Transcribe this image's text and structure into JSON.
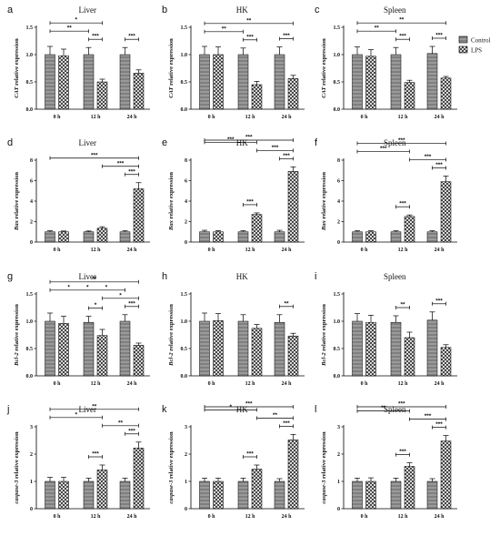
{
  "legend": [
    {
      "label": "Control",
      "pattern": "control"
    },
    {
      "label": "LPS",
      "pattern": "lps"
    }
  ],
  "chart_data": [
    {
      "letter": "a",
      "type": "bar",
      "title": "Liver",
      "gene": "CAT",
      "ylabel_suffix": " relative expression",
      "categories": [
        "0 h",
        "12 h",
        "24 h"
      ],
      "ylim": [
        0,
        1.5
      ],
      "yticks": [
        "0.0",
        "0.5",
        "1.0",
        "1.5"
      ],
      "series": [
        {
          "name": "Control",
          "values": [
            1.0,
            1.0,
            1.0
          ],
          "errors": [
            0.15,
            0.13,
            0.13
          ]
        },
        {
          "name": "LPS",
          "values": [
            0.98,
            0.5,
            0.66
          ],
          "errors": [
            0.12,
            0.05,
            0.06
          ]
        }
      ],
      "significance": [
        {
          "from": [
            1,
            1
          ],
          "to": [
            0,
            0
          ],
          "label": "*"
        },
        {
          "from": [
            1,
            0
          ],
          "to": [
            0,
            0
          ],
          "label": "**"
        },
        {
          "from": [
            1,
            1
          ],
          "to": [
            1,
            0
          ],
          "label": "***"
        },
        {
          "from": [
            2,
            1
          ],
          "to": [
            2,
            0
          ],
          "label": "***"
        }
      ]
    },
    {
      "letter": "b",
      "type": "bar",
      "title": "HK",
      "gene": "CAT",
      "ylabel_suffix": " relative expression",
      "categories": [
        "0 h",
        "12 h",
        "24 h"
      ],
      "ylim": [
        0,
        1.5
      ],
      "yticks": [
        "0.0",
        "0.5",
        "1.0",
        "1.5"
      ],
      "series": [
        {
          "name": "Control",
          "values": [
            1.0,
            1.0,
            1.0
          ],
          "errors": [
            0.15,
            0.12,
            0.14
          ]
        },
        {
          "name": "LPS",
          "values": [
            1.0,
            0.45,
            0.56
          ],
          "errors": [
            0.14,
            0.06,
            0.06
          ]
        }
      ],
      "significance": [
        {
          "from": [
            2,
            1
          ],
          "to": [
            0,
            0
          ],
          "label": "**"
        },
        {
          "from": [
            1,
            0
          ],
          "to": [
            0,
            0
          ],
          "label": "**"
        },
        {
          "from": [
            1,
            1
          ],
          "to": [
            1,
            0
          ],
          "label": "***"
        },
        {
          "from": [
            2,
            1
          ],
          "to": [
            2,
            0
          ],
          "label": "***"
        }
      ]
    },
    {
      "letter": "c",
      "type": "bar",
      "title": "Spleen",
      "gene": "CAT",
      "ylabel_suffix": " relative expression",
      "categories": [
        "0 h",
        "12 h",
        "24 h"
      ],
      "ylim": [
        0,
        1.5
      ],
      "yticks": [
        "0.0",
        "0.5",
        "1.0",
        "1.5"
      ],
      "series": [
        {
          "name": "Control",
          "values": [
            1.0,
            1.0,
            1.02
          ],
          "errors": [
            0.14,
            0.13,
            0.13
          ]
        },
        {
          "name": "LPS",
          "values": [
            0.97,
            0.49,
            0.57
          ],
          "errors": [
            0.12,
            0.04,
            0.03
          ]
        }
      ],
      "significance": [
        {
          "from": [
            2,
            1
          ],
          "to": [
            0,
            0
          ],
          "label": "**"
        },
        {
          "from": [
            1,
            0
          ],
          "to": [
            0,
            0
          ],
          "label": "**"
        },
        {
          "from": [
            1,
            1
          ],
          "to": [
            1,
            0
          ],
          "label": "***"
        },
        {
          "from": [
            2,
            1
          ],
          "to": [
            2,
            0
          ],
          "label": "***"
        }
      ]
    },
    {
      "letter": "d",
      "type": "bar",
      "title": "Liver",
      "gene": "Bax",
      "ylabel_suffix": " relative expression",
      "categories": [
        "0 h",
        "12 h",
        "24 h"
      ],
      "ylim": [
        0,
        8
      ],
      "yticks": [
        "0",
        "2",
        "4",
        "6",
        "8"
      ],
      "series": [
        {
          "name": "Control",
          "values": [
            1.0,
            1.0,
            1.0
          ],
          "errors": [
            0.1,
            0.08,
            0.1
          ]
        },
        {
          "name": "LPS",
          "values": [
            1.0,
            1.35,
            5.2
          ],
          "errors": [
            0.08,
            0.15,
            0.6
          ]
        }
      ],
      "significance": [
        {
          "from": [
            2,
            1
          ],
          "to": [
            0,
            0
          ],
          "label": "***"
        },
        {
          "from": [
            2,
            1
          ],
          "to": [
            1,
            1
          ],
          "label": "***"
        },
        {
          "from": [
            2,
            1
          ],
          "to": [
            2,
            0
          ],
          "label": "***"
        }
      ]
    },
    {
      "letter": "e",
      "type": "bar",
      "title": "HK",
      "gene": "Bax",
      "ylabel_suffix": " relative expression",
      "categories": [
        "0 h",
        "12 h",
        "24 h"
      ],
      "ylim": [
        0,
        8
      ],
      "yticks": [
        "0",
        "2",
        "4",
        "6",
        "8"
      ],
      "series": [
        {
          "name": "Control",
          "values": [
            1.0,
            1.0,
            1.0
          ],
          "errors": [
            0.15,
            0.1,
            0.15
          ]
        },
        {
          "name": "LPS",
          "values": [
            1.0,
            2.7,
            6.9
          ],
          "errors": [
            0.12,
            0.15,
            0.45
          ]
        }
      ],
      "significance": [
        {
          "from": [
            2,
            1
          ],
          "to": [
            0,
            0
          ],
          "label": "***"
        },
        {
          "from": [
            2,
            1
          ],
          "to": [
            1,
            1
          ],
          "label": "***"
        },
        {
          "from": [
            2,
            1
          ],
          "to": [
            2,
            0
          ],
          "label": "***"
        },
        {
          "from": [
            1,
            1
          ],
          "to": [
            0,
            0
          ],
          "label": "***"
        },
        {
          "from": [
            1,
            1
          ],
          "to": [
            1,
            0
          ],
          "label": "***"
        }
      ]
    },
    {
      "letter": "f",
      "type": "bar",
      "title": "Spleen",
      "gene": "Bax",
      "ylabel_suffix": " relative expression",
      "categories": [
        "0 h",
        "12 h",
        "24 h"
      ],
      "ylim": [
        0,
        8
      ],
      "yticks": [
        "0",
        "2",
        "4",
        "6",
        "8"
      ],
      "series": [
        {
          "name": "Control",
          "values": [
            1.0,
            1.0,
            1.0
          ],
          "errors": [
            0.1,
            0.1,
            0.1
          ]
        },
        {
          "name": "LPS",
          "values": [
            1.0,
            2.5,
            5.9
          ],
          "errors": [
            0.1,
            0.15,
            0.55
          ]
        }
      ],
      "significance": [
        {
          "from": [
            2,
            1
          ],
          "to": [
            0,
            0
          ],
          "label": "***"
        },
        {
          "from": [
            2,
            1
          ],
          "to": [
            1,
            1
          ],
          "label": "***"
        },
        {
          "from": [
            2,
            1
          ],
          "to": [
            2,
            0
          ],
          "label": "***"
        },
        {
          "from": [
            1,
            1
          ],
          "to": [
            0,
            0
          ],
          "label": "***"
        },
        {
          "from": [
            1,
            1
          ],
          "to": [
            1,
            0
          ],
          "label": "***"
        }
      ]
    },
    {
      "letter": "g",
      "type": "bar",
      "title": "Liver",
      "gene": "Bcl-2",
      "ylabel_suffix": " relative expression",
      "categories": [
        "0 h",
        "12 h",
        "24 h"
      ],
      "ylim": [
        0,
        1.5
      ],
      "yticks": [
        "0.0",
        "0.5",
        "1.0",
        "1.5"
      ],
      "series": [
        {
          "name": "Control",
          "values": [
            1.0,
            0.98,
            1.0
          ],
          "errors": [
            0.15,
            0.11,
            0.12
          ]
        },
        {
          "name": "LPS",
          "values": [
            0.96,
            0.74,
            0.56
          ],
          "errors": [
            0.13,
            0.11,
            0.04
          ]
        }
      ],
      "significance": [
        {
          "from": [
            2,
            1
          ],
          "to": [
            0,
            0
          ],
          "label": "**"
        },
        {
          "from": [
            2,
            0
          ],
          "to": [
            0,
            0
          ],
          "label": "*",
          "extra": [
            {
              "label": "*"
            },
            {
              "label": "*"
            }
          ]
        },
        {
          "from": [
            2,
            1
          ],
          "to": [
            1,
            1
          ],
          "label": "*"
        },
        {
          "from": [
            1,
            1
          ],
          "to": [
            1,
            0
          ],
          "label": "*"
        },
        {
          "from": [
            2,
            1
          ],
          "to": [
            2,
            0
          ],
          "label": "***"
        }
      ]
    },
    {
      "letter": "h",
      "type": "bar",
      "title": "HK",
      "gene": "Bcl-2",
      "ylabel_suffix": " relative expression",
      "categories": [
        "0 h",
        "12 h",
        "24 h"
      ],
      "ylim": [
        0,
        1.5
      ],
      "yticks": [
        "0.0",
        "0.5",
        "1.0",
        "1.5"
      ],
      "series": [
        {
          "name": "Control",
          "values": [
            1.0,
            1.0,
            0.98
          ],
          "errors": [
            0.15,
            0.12,
            0.14
          ]
        },
        {
          "name": "LPS",
          "values": [
            1.01,
            0.87,
            0.73
          ],
          "errors": [
            0.13,
            0.07,
            0.05
          ]
        }
      ],
      "significance": [
        {
          "from": [
            2,
            1
          ],
          "to": [
            2,
            0
          ],
          "label": "**"
        }
      ]
    },
    {
      "letter": "i",
      "type": "bar",
      "title": "Spleen",
      "gene": "Bcl-2",
      "ylabel_suffix": " relative expression",
      "categories": [
        "0 h",
        "12 h",
        "24 h"
      ],
      "ylim": [
        0,
        1.5
      ],
      "yticks": [
        "0.0",
        "0.5",
        "1.0",
        "1.5"
      ],
      "series": [
        {
          "name": "Control",
          "values": [
            1.0,
            0.98,
            1.02
          ],
          "errors": [
            0.14,
            0.12,
            0.15
          ]
        },
        {
          "name": "LPS",
          "values": [
            0.98,
            0.7,
            0.52
          ],
          "errors": [
            0.13,
            0.1,
            0.05
          ]
        }
      ],
      "significance": [
        {
          "from": [
            1,
            1
          ],
          "to": [
            1,
            0
          ],
          "label": "**"
        },
        {
          "from": [
            2,
            1
          ],
          "to": [
            2,
            0
          ],
          "label": "***"
        }
      ]
    },
    {
      "letter": "j",
      "type": "bar",
      "title": "Liver",
      "gene": "caspase-3",
      "ylabel_suffix": " relative expression",
      "categories": [
        "0 h",
        "12 h",
        "24 h"
      ],
      "ylim": [
        0,
        3
      ],
      "yticks": [
        "0",
        "1",
        "2",
        "3"
      ],
      "series": [
        {
          "name": "Control",
          "values": [
            1.0,
            1.0,
            1.0
          ],
          "errors": [
            0.15,
            0.12,
            0.12
          ]
        },
        {
          "name": "LPS",
          "values": [
            1.0,
            1.42,
            2.22
          ],
          "errors": [
            0.15,
            0.18,
            0.22
          ]
        }
      ],
      "significance": [
        {
          "from": [
            2,
            1
          ],
          "to": [
            0,
            0
          ],
          "label": "**"
        },
        {
          "from": [
            2,
            1
          ],
          "to": [
            1,
            1
          ],
          "label": "**"
        },
        {
          "from": [
            2,
            1
          ],
          "to": [
            2,
            0
          ],
          "label": "***"
        },
        {
          "from": [
            1,
            1
          ],
          "to": [
            0,
            0
          ],
          "label": "*"
        },
        {
          "from": [
            1,
            1
          ],
          "to": [
            1,
            0
          ],
          "label": "***"
        }
      ]
    },
    {
      "letter": "k",
      "type": "bar",
      "title": "HK",
      "gene": "caspase-3",
      "ylabel_suffix": " relative expression",
      "categories": [
        "0 h",
        "12 h",
        "24 h"
      ],
      "ylim": [
        0,
        3
      ],
      "yticks": [
        "0",
        "1",
        "2",
        "3"
      ],
      "series": [
        {
          "name": "Control",
          "values": [
            1.0,
            1.0,
            1.0
          ],
          "errors": [
            0.12,
            0.12,
            0.1
          ]
        },
        {
          "name": "LPS",
          "values": [
            1.0,
            1.45,
            2.52
          ],
          "errors": [
            0.12,
            0.15,
            0.2
          ]
        }
      ],
      "significance": [
        {
          "from": [
            2,
            1
          ],
          "to": [
            0,
            0
          ],
          "label": "***"
        },
        {
          "from": [
            2,
            1
          ],
          "to": [
            1,
            1
          ],
          "label": "**"
        },
        {
          "from": [
            2,
            1
          ],
          "to": [
            2,
            0
          ],
          "label": "***"
        },
        {
          "from": [
            1,
            1
          ],
          "to": [
            0,
            0
          ],
          "label": "*"
        },
        {
          "from": [
            1,
            1
          ],
          "to": [
            1,
            0
          ],
          "label": "***"
        }
      ]
    },
    {
      "letter": "l",
      "type": "bar",
      "title": "Spleen",
      "gene": "caspase-3",
      "ylabel_suffix": " relative expression",
      "categories": [
        "0 h",
        "12 h",
        "24 h"
      ],
      "ylim": [
        0,
        3
      ],
      "yticks": [
        "0",
        "1",
        "2",
        "3"
      ],
      "series": [
        {
          "name": "Control",
          "values": [
            1.0,
            1.0,
            1.0
          ],
          "errors": [
            0.12,
            0.12,
            0.1
          ]
        },
        {
          "name": "LPS",
          "values": [
            1.0,
            1.55,
            2.48
          ],
          "errors": [
            0.13,
            0.13,
            0.2
          ]
        }
      ],
      "significance": [
        {
          "from": [
            2,
            1
          ],
          "to": [
            0,
            0
          ],
          "label": "***"
        },
        {
          "from": [
            2,
            1
          ],
          "to": [
            1,
            1
          ],
          "label": "***"
        },
        {
          "from": [
            2,
            1
          ],
          "to": [
            2,
            0
          ],
          "label": "***"
        },
        {
          "from": [
            1,
            1
          ],
          "to": [
            0,
            0
          ],
          "label": "**"
        },
        {
          "from": [
            1,
            1
          ],
          "to": [
            1,
            0
          ],
          "label": "***"
        }
      ]
    }
  ]
}
